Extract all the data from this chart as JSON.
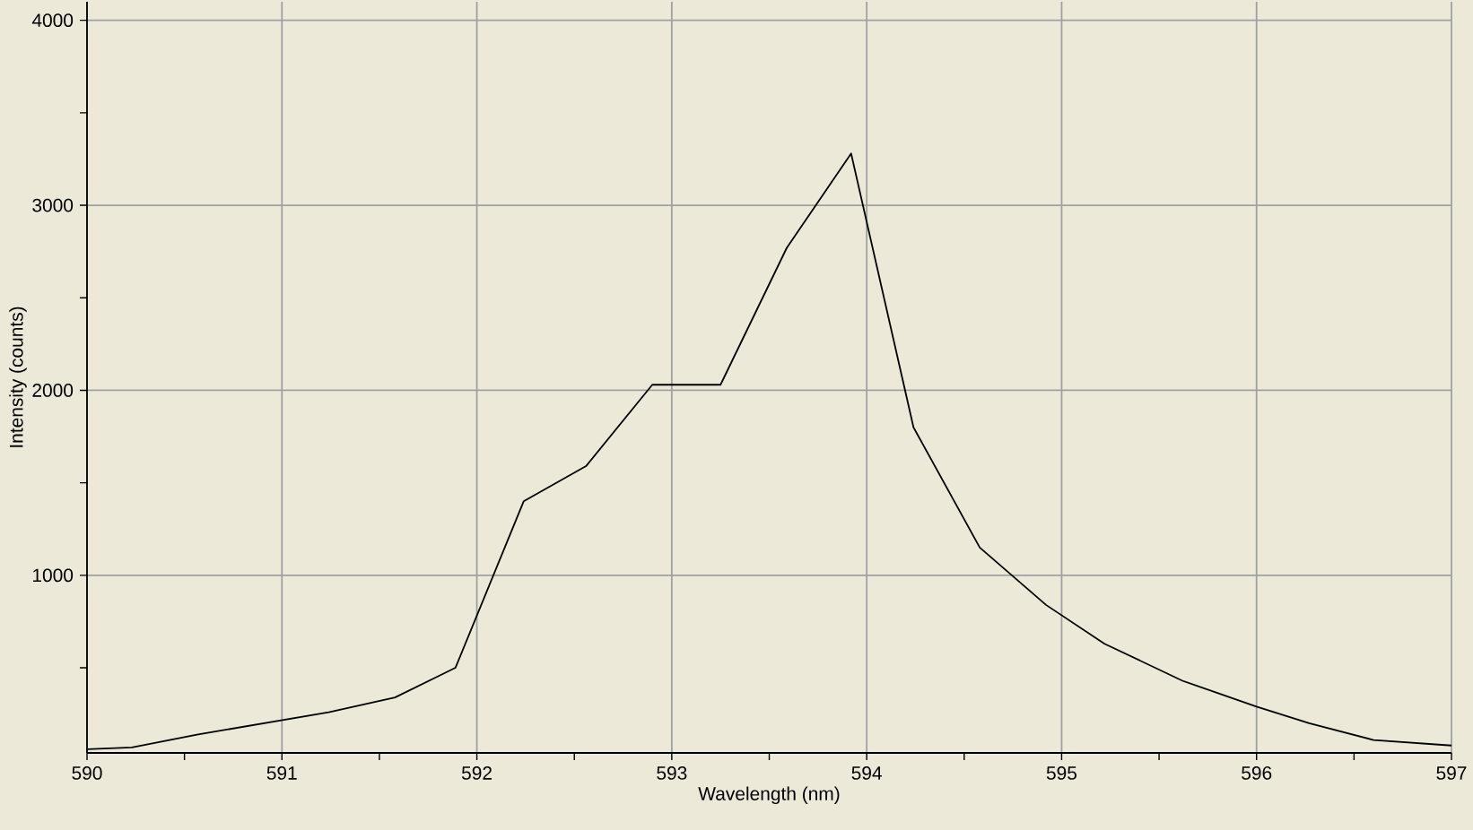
{
  "chart_data": {
    "type": "line",
    "xlabel": "Wavelength (nm)",
    "ylabel": "Intensity (counts)",
    "x": [
      590.0,
      590.23,
      590.57,
      591.24,
      591.58,
      591.89,
      592.24,
      592.56,
      592.9,
      593.25,
      593.59,
      593.92,
      594.24,
      594.58,
      594.92,
      595.22,
      595.62,
      596.0,
      596.27,
      596.6,
      597.0
    ],
    "values": [
      60,
      70,
      140,
      260,
      340,
      500,
      1400,
      1590,
      2030,
      2030,
      2770,
      3280,
      1800,
      1150,
      840,
      630,
      430,
      290,
      200,
      110,
      80
    ],
    "color": "#000000",
    "xlim": [
      590,
      597
    ],
    "ylim": [
      40,
      4100
    ],
    "xticks": [
      590,
      {
        "value": 590.5,
        "label": null
      },
      591,
      {
        "value": 591.5,
        "label": null
      },
      592,
      {
        "value": 592.5,
        "label": null
      },
      593,
      {
        "value": 593.5,
        "label": null
      },
      594,
      {
        "value": 594.5,
        "label": null
      },
      595,
      {
        "value": 595.5,
        "label": null
      },
      596,
      {
        "value": 596.5,
        "label": null
      },
      597
    ],
    "yticks": [
      {
        "value": 500,
        "label": null
      },
      1000,
      {
        "value": 1500,
        "label": null
      },
      2000,
      {
        "value": 2500,
        "label": null
      },
      3000,
      {
        "value": 3500,
        "label": null
      },
      4000
    ],
    "grid": true,
    "marker": "none",
    "line_style": "solid"
  }
}
